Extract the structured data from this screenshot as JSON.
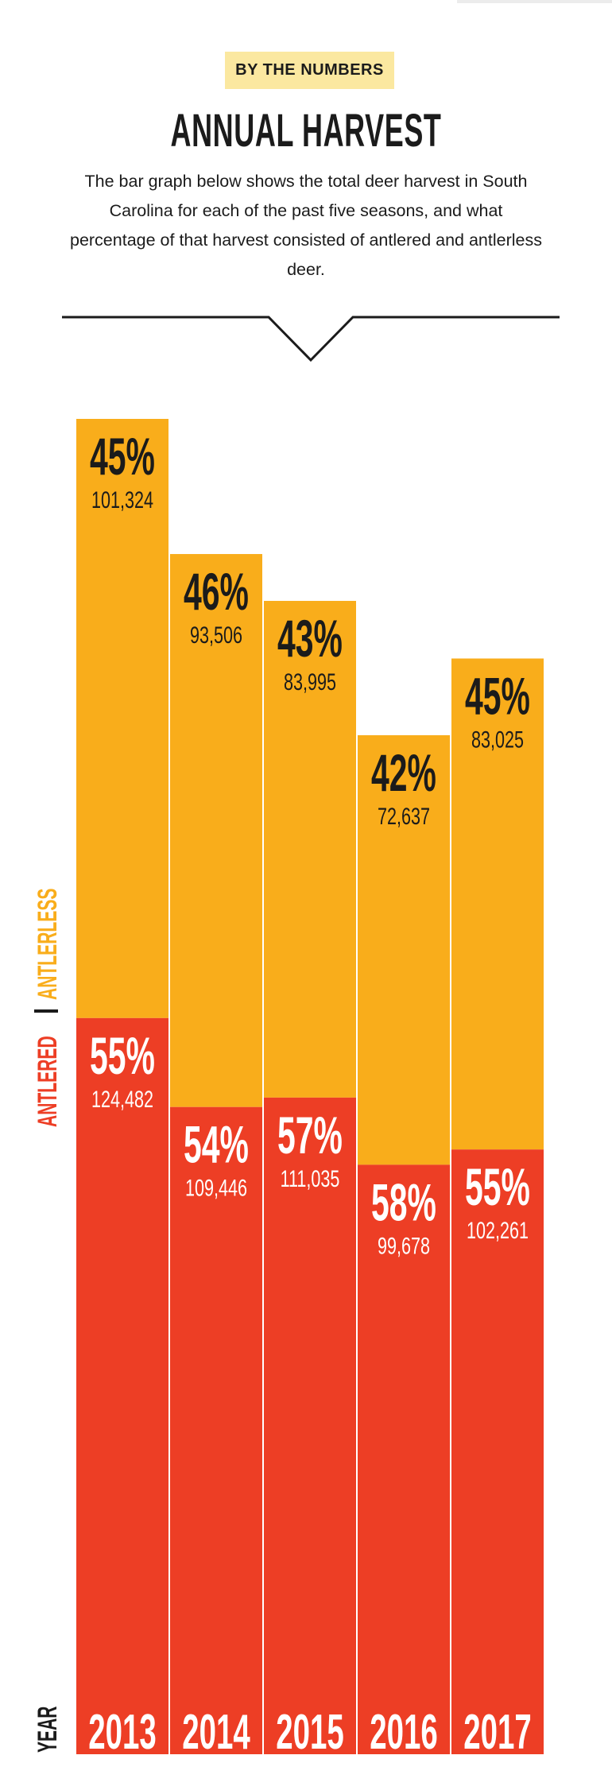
{
  "header": {
    "kicker": "BY THE NUMBERS",
    "title": "ANNUAL HARVEST",
    "description": "The bar graph below shows the total deer harvest in South Carolina for each of the past five seasons, and what percentage of that harvest consisted of antlered and antlerless deer."
  },
  "colors": {
    "antlerless": "#f9ad1b",
    "antlered": "#ed3e25",
    "kicker_bg": "#fbe8a0",
    "text_dark": "#1b1b1b",
    "text_light": "#ffffff"
  },
  "chart_data": {
    "type": "bar",
    "stacked": true,
    "xlabel": "YEAR",
    "categories": [
      "2013",
      "2014",
      "2015",
      "2016",
      "2017"
    ],
    "legend": [
      "ANTLERED",
      "ANTLERLESS"
    ],
    "series": [
      {
        "name": "ANTLERED",
        "values": [
          124482,
          109446,
          111035,
          99678,
          102261
        ],
        "percent_labels": [
          "55%",
          "54%",
          "57%",
          "58%",
          "55%"
        ],
        "value_labels": [
          "124,482",
          "109,446",
          "111,035",
          "99,678",
          "102,261"
        ]
      },
      {
        "name": "ANTLERLESS",
        "values": [
          101324,
          93506,
          83995,
          72637,
          83025
        ],
        "percent_labels": [
          "45%",
          "46%",
          "43%",
          "42%",
          "45%"
        ],
        "value_labels": [
          "101,324",
          "93,506",
          "83,995",
          "72,637",
          "83,025"
        ]
      }
    ],
    "ylim": [
      0,
      225806
    ],
    "grid": false
  }
}
